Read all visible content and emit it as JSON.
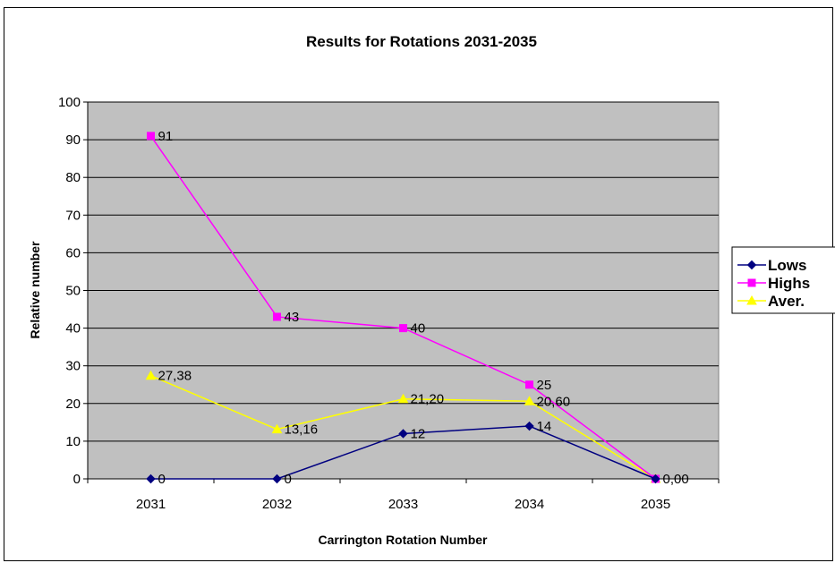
{
  "chart_data": {
    "type": "line",
    "title": "Results for Rotations 2031-2035",
    "xlabel": "Carrington Rotation Number",
    "ylabel": "Relative number",
    "categories": [
      "2031",
      "2032",
      "2033",
      "2034",
      "2035"
    ],
    "ylim": [
      0,
      100
    ],
    "yticks": [
      "0",
      "10",
      "20",
      "30",
      "40",
      "50",
      "60",
      "70",
      "80",
      "90",
      "100"
    ],
    "grid": true,
    "legend_position": "right",
    "series": [
      {
        "name": "Lows",
        "color": "#000080",
        "marker": "diamond",
        "values": [
          0,
          0,
          12,
          14,
          0
        ],
        "labels": [
          "0",
          "0",
          "12",
          "14",
          ""
        ]
      },
      {
        "name": "Highs",
        "color": "#ff00ff",
        "marker": "square",
        "values": [
          91,
          43,
          40,
          25,
          0
        ],
        "labels": [
          "91",
          "43",
          "40",
          "25",
          ""
        ]
      },
      {
        "name": "Aver.",
        "color": "#ffff00",
        "marker": "triangle",
        "values": [
          27.38,
          13.16,
          21.2,
          20.6,
          0
        ],
        "labels": [
          "27,38",
          "13,16",
          "21,20",
          "20,60",
          "0,00"
        ]
      }
    ],
    "plot_background": "#c0c0c0"
  }
}
